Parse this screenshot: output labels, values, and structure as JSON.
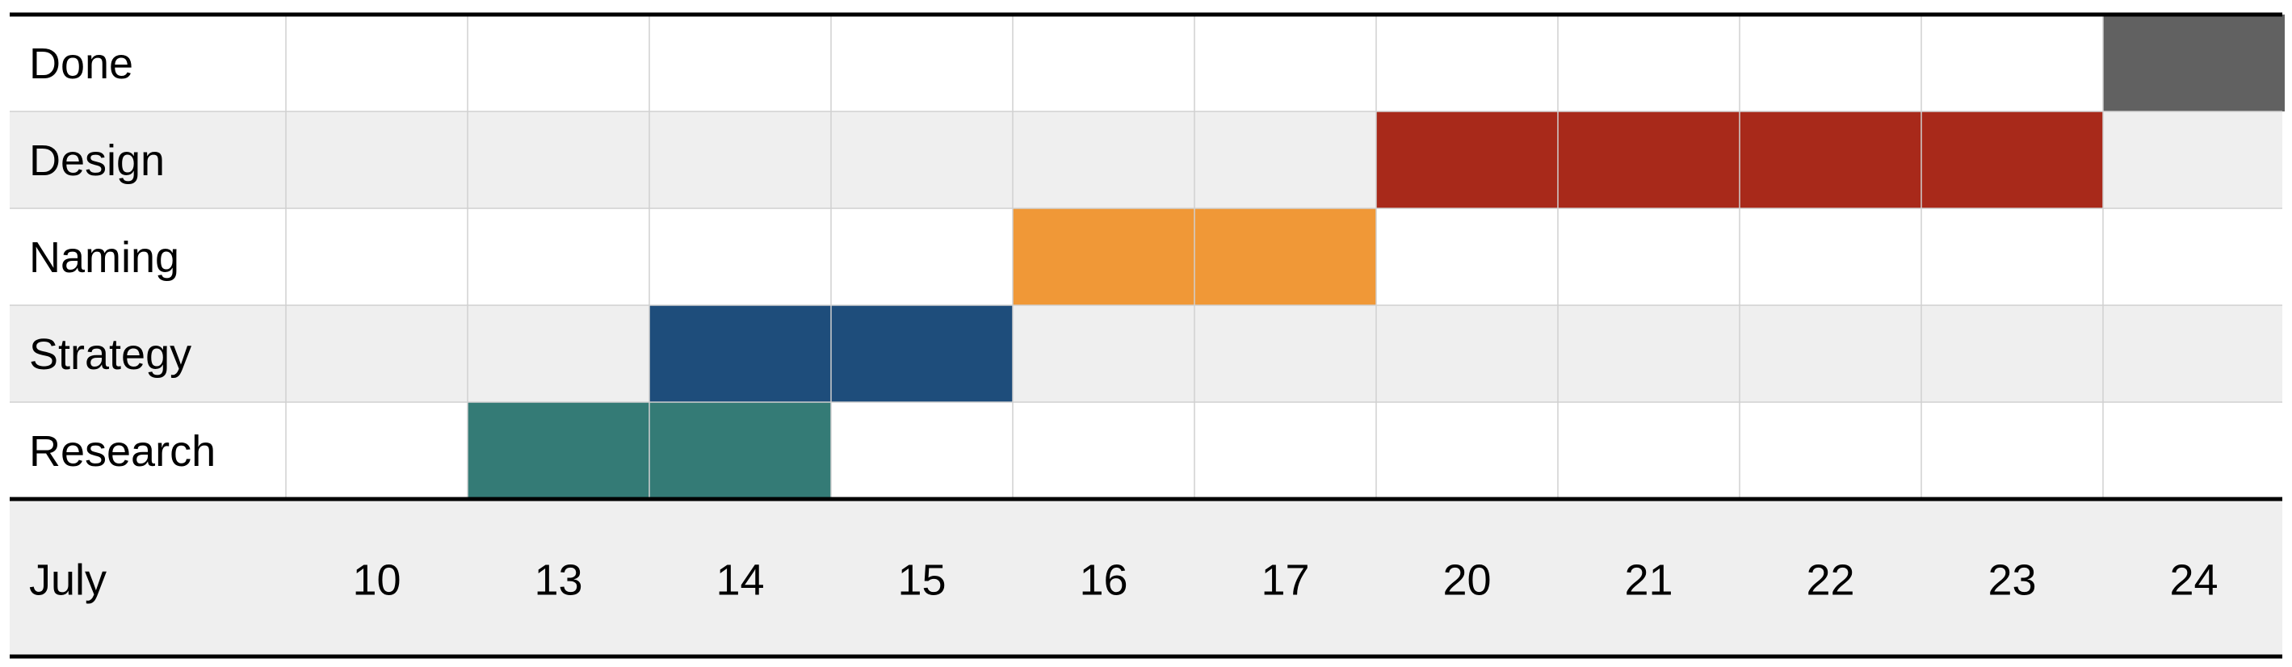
{
  "chart_data": {
    "type": "gantt",
    "tasks": [
      "Done",
      "Design",
      "Naming",
      "Strategy",
      "Research"
    ],
    "month_label": "July",
    "days": [
      "10",
      "13",
      "14",
      "15",
      "16",
      "17",
      "20",
      "21",
      "22",
      "23",
      "24"
    ],
    "bars": [
      {
        "task": "Done",
        "start": "24",
        "end": "24",
        "color": "#616161"
      },
      {
        "task": "Design",
        "start": "20",
        "end": "23",
        "color": "#a8291a"
      },
      {
        "task": "Naming",
        "start": "16",
        "end": "17",
        "color": "#f09837"
      },
      {
        "task": "Strategy",
        "start": "14",
        "end": "15",
        "color": "#1e4d7b"
      },
      {
        "task": "Research",
        "start": "13",
        "end": "14",
        "color": "#347b76"
      }
    ],
    "colors": {
      "row_stripe": "#efefef",
      "row_plain": "#ffffff",
      "grid": "#d0d0d0",
      "rule": "#000000"
    }
  }
}
